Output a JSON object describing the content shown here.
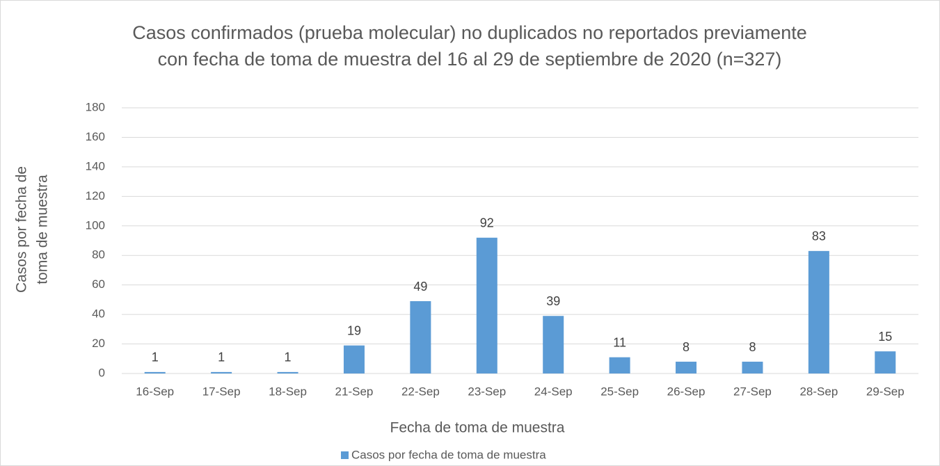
{
  "chart_data": {
    "type": "bar",
    "title": [
      "Casos confirmados (prueba molecular) no duplicados no reportados previamente",
      "con fecha de toma de muestra del 16 al 29 de septiembre de 2020 (n=327)"
    ],
    "x_label": "Fecha de toma de muestra",
    "y_label": [
      "Casos por fecha de",
      "toma de muestra"
    ],
    "categories": [
      "16-Sep",
      "17-Sep",
      "18-Sep",
      "21-Sep",
      "22-Sep",
      "23-Sep",
      "24-Sep",
      "25-Sep",
      "26-Sep",
      "27-Sep",
      "28-Sep",
      "29-Sep"
    ],
    "series": [
      {
        "name": "Casos por fecha de toma de muestra",
        "color": "#5b9bd5",
        "values": [
          1,
          1,
          1,
          19,
          49,
          92,
          39,
          11,
          8,
          8,
          83,
          15
        ]
      }
    ],
    "ylim": [
      0,
      180
    ],
    "yticks": [
      0,
      20,
      40,
      60,
      80,
      100,
      120,
      140,
      160,
      180
    ],
    "grid": true,
    "legend": "bottom",
    "data_labels": true
  }
}
